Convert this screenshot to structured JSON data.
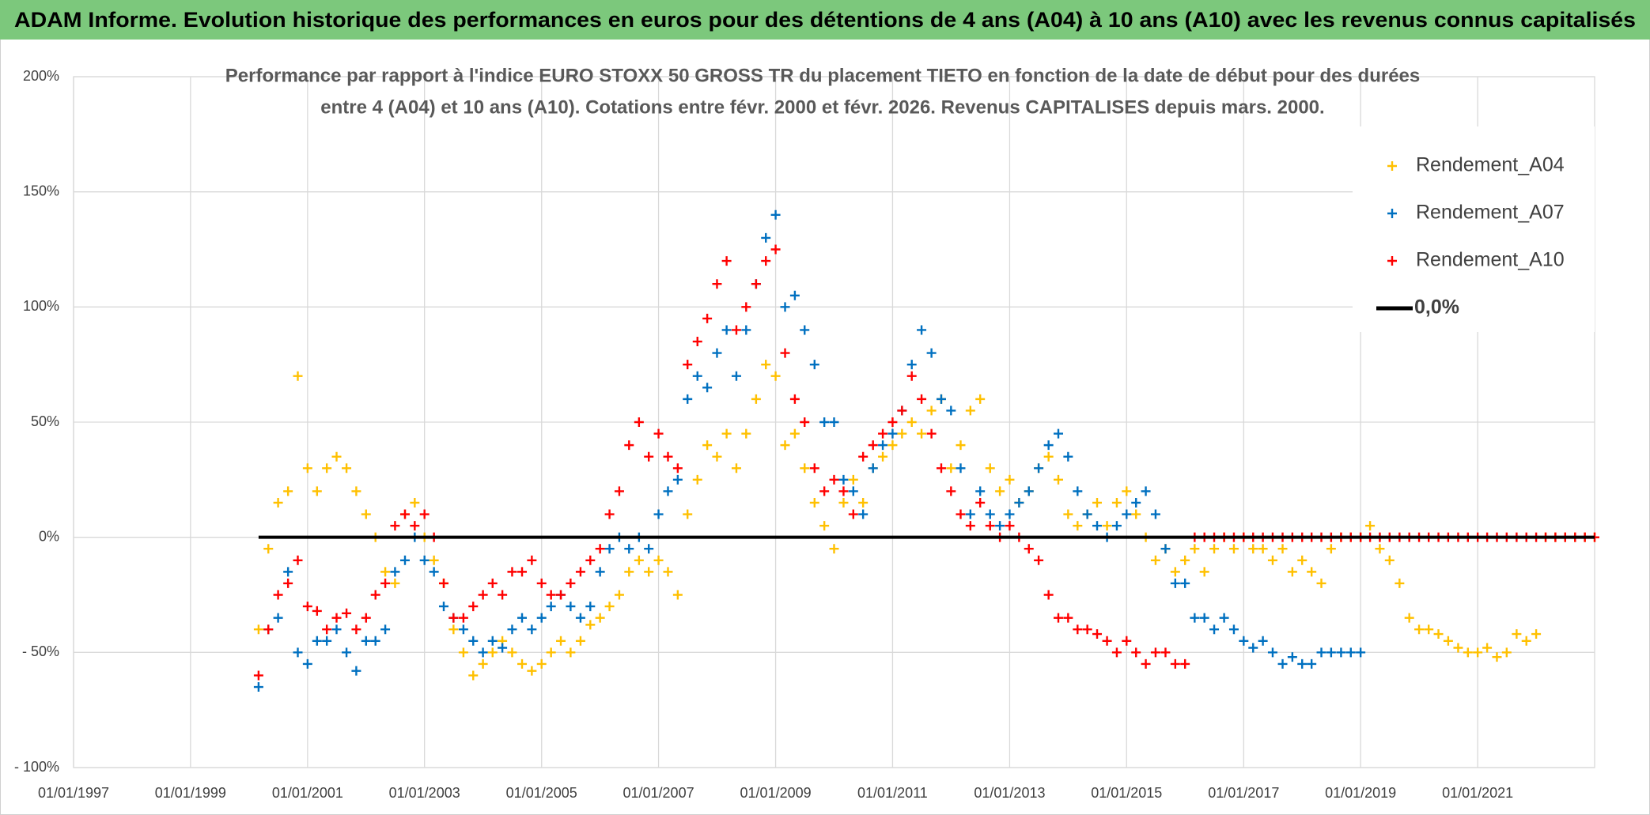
{
  "chart_data": {
    "type": "scatter",
    "title": "ADAM Informe. Evolution historique des performances en euros pour des détentions de 4 ans (A04) à 10 ans (A10) avec les revenus connus capitalisés",
    "subtitle": [
      "Performance par rapport à l'indice EURO STOXX 50 GROSS TR  du placement TIETO en fonction de la date de début pour des durées",
      "entre 4 (A04) et 10 ans (A10). Cotations entre févr. 2000 et févr. 2026. Revenus CAPITALISES depuis mars. 2000."
    ],
    "x": [
      "2000-03-01",
      "2000-05-01",
      "2000-07-01",
      "2000-09-01",
      "2000-11-01",
      "2001-01-01",
      "2001-03-01",
      "2001-05-01",
      "2001-07-01",
      "2001-09-01",
      "2001-11-01",
      "2002-01-01",
      "2002-03-01",
      "2002-05-01",
      "2002-07-01",
      "2002-09-01",
      "2002-11-01",
      "2003-01-01",
      "2003-03-01",
      "2003-05-01",
      "2003-07-01",
      "2003-09-01",
      "2003-11-01",
      "2004-01-01",
      "2004-03-01",
      "2004-05-01",
      "2004-07-01",
      "2004-09-01",
      "2004-11-01",
      "2005-01-01",
      "2005-03-01",
      "2005-05-01",
      "2005-07-01",
      "2005-09-01",
      "2005-11-01",
      "2006-01-01",
      "2006-03-01",
      "2006-05-01",
      "2006-07-01",
      "2006-09-01",
      "2006-11-01",
      "2007-01-01",
      "2007-03-01",
      "2007-05-01",
      "2007-07-01",
      "2007-09-01",
      "2007-11-01",
      "2008-01-01",
      "2008-03-01",
      "2008-05-01",
      "2008-07-01",
      "2008-09-01",
      "2008-11-01",
      "2009-01-01",
      "2009-03-01",
      "2009-05-01",
      "2009-07-01",
      "2009-09-01",
      "2009-11-01",
      "2010-01-01",
      "2010-03-01",
      "2010-05-01",
      "2010-07-01",
      "2010-09-01",
      "2010-11-01",
      "2011-01-01",
      "2011-03-01",
      "2011-05-01",
      "2011-07-01",
      "2011-09-01",
      "2011-11-01",
      "2012-01-01",
      "2012-03-01",
      "2012-05-01",
      "2012-07-01",
      "2012-09-01",
      "2012-11-01",
      "2013-01-01",
      "2013-03-01",
      "2013-05-01",
      "2013-07-01",
      "2013-09-01",
      "2013-11-01",
      "2014-01-01",
      "2014-03-01",
      "2014-05-01",
      "2014-07-01",
      "2014-09-01",
      "2014-11-01",
      "2015-01-01",
      "2015-03-01",
      "2015-05-01",
      "2015-07-01",
      "2015-09-01",
      "2015-11-01",
      "2016-01-01",
      "2016-03-01",
      "2016-05-01",
      "2016-07-01",
      "2016-09-01",
      "2016-11-01",
      "2017-01-01",
      "2017-03-01",
      "2017-05-01",
      "2017-07-01",
      "2017-09-01",
      "2017-11-01",
      "2018-01-01",
      "2018-03-01",
      "2018-05-01",
      "2018-07-01",
      "2018-09-01",
      "2018-11-01",
      "2019-01-01",
      "2019-03-01",
      "2019-05-01",
      "2019-07-01",
      "2019-09-01",
      "2019-11-01",
      "2020-01-01",
      "2020-03-01",
      "2020-05-01",
      "2020-07-01",
      "2020-09-01",
      "2020-11-01",
      "2021-01-01",
      "2021-03-01",
      "2021-05-01",
      "2021-07-01",
      "2021-09-01",
      "2021-11-01",
      "2022-01-01",
      "2022-03-01",
      "2022-05-01",
      "2022-07-01",
      "2022-09-01",
      "2022-11-01",
      "2023-01-01"
    ],
    "series": [
      {
        "name": "Rendement_A04",
        "color": "#ffc000",
        "values": [
          -40,
          -5,
          15,
          20,
          70,
          30,
          20,
          30,
          35,
          30,
          20,
          10,
          0,
          -15,
          -20,
          10,
          15,
          0,
          -10,
          -20,
          -40,
          -50,
          -60,
          -55,
          -50,
          -45,
          -50,
          -55,
          -58,
          -55,
          -50,
          -45,
          -50,
          -45,
          -38,
          -35,
          -30,
          -25,
          -15,
          -10,
          -15,
          -10,
          -15,
          -25,
          10,
          25,
          40,
          35,
          45,
          30,
          45,
          60,
          75,
          70,
          40,
          45,
          30,
          15,
          5,
          -5,
          15,
          25,
          15,
          30,
          35,
          40,
          45,
          50,
          45,
          55,
          60,
          30,
          40,
          55,
          60,
          30,
          20,
          25,
          15,
          20,
          30,
          35,
          25,
          10,
          5,
          10,
          15,
          5,
          15,
          20,
          10,
          0,
          -10,
          -5,
          -15,
          -10,
          -5,
          -15,
          -5,
          0,
          -5,
          0,
          -5,
          -5,
          -10,
          -5,
          -15,
          -10,
          -15,
          -20,
          -5,
          0,
          0,
          0,
          5,
          -5,
          -10,
          -20,
          -35,
          -40,
          -40,
          -42,
          -45,
          -48,
          -50,
          -50,
          -48,
          -52,
          -50,
          -42,
          -45,
          -42,
          0,
          0,
          0,
          0,
          0,
          0
        ]
      },
      {
        "name": "Rendement_A07",
        "color": "#0070c0",
        "values": [
          -65,
          -40,
          -35,
          -15,
          -50,
          -55,
          -45,
          -45,
          -40,
          -50,
          -58,
          -45,
          -45,
          -40,
          -15,
          -10,
          0,
          -10,
          -15,
          -30,
          -35,
          -40,
          -45,
          -50,
          -45,
          -48,
          -40,
          -35,
          -40,
          -35,
          -30,
          -25,
          -30,
          -35,
          -30,
          -15,
          -5,
          0,
          -5,
          0,
          -5,
          10,
          20,
          25,
          60,
          70,
          65,
          80,
          90,
          70,
          90,
          110,
          130,
          140,
          100,
          105,
          90,
          75,
          50,
          50,
          25,
          20,
          10,
          30,
          40,
          45,
          55,
          75,
          90,
          80,
          60,
          55,
          30,
          10,
          20,
          10,
          5,
          10,
          15,
          20,
          30,
          40,
          45,
          35,
          20,
          10,
          5,
          0,
          5,
          10,
          15,
          20,
          10,
          -5,
          -20,
          -20,
          -35,
          -35,
          -40,
          -35,
          -40,
          -45,
          -48,
          -45,
          -50,
          -55,
          -52,
          -55,
          -55,
          -50,
          -50,
          -50,
          -50,
          -50,
          null,
          null,
          null,
          null,
          null,
          null,
          null,
          null,
          null,
          null,
          null,
          null,
          null,
          null,
          null,
          null,
          null,
          null,
          null,
          null,
          null,
          null,
          null,
          null
        ]
      },
      {
        "name": "Rendement_A10",
        "color": "#ff0000",
        "values": [
          -60,
          -40,
          -25,
          -20,
          -10,
          -30,
          -32,
          -40,
          -35,
          -33,
          -40,
          -35,
          -25,
          -20,
          5,
          10,
          5,
          10,
          0,
          -20,
          -35,
          -35,
          -30,
          -25,
          -20,
          -25,
          -15,
          -15,
          -10,
          -20,
          -25,
          -25,
          -20,
          -15,
          -10,
          -5,
          10,
          20,
          40,
          50,
          35,
          45,
          35,
          30,
          75,
          85,
          95,
          110,
          120,
          90,
          100,
          110,
          120,
          125,
          80,
          60,
          50,
          30,
          20,
          25,
          20,
          10,
          35,
          40,
          45,
          50,
          55,
          70,
          60,
          45,
          30,
          20,
          10,
          5,
          15,
          5,
          0,
          5,
          0,
          -5,
          -10,
          -25,
          -35,
          -35,
          -40,
          -40,
          -42,
          -45,
          -50,
          -45,
          -50,
          -55,
          -50,
          -50,
          -55,
          -55,
          0,
          0,
          0,
          0,
          0,
          0,
          0,
          0,
          0,
          0,
          0,
          0,
          0,
          0,
          0,
          0,
          0,
          0,
          0,
          0,
          0,
          0,
          0,
          0,
          0,
          0,
          0,
          0,
          0,
          0,
          0,
          0,
          0,
          0,
          0,
          0,
          0,
          0,
          0,
          0,
          0,
          0
        ]
      },
      {
        "name": "0,0%",
        "type": "line",
        "color": "#000000",
        "x": [
          "2000-03-01",
          "2023-01-01"
        ],
        "values": [
          0,
          0
        ]
      }
    ],
    "xlim": [
      "1997-01-01",
      "2023-01-01"
    ],
    "xticks": [
      {
        "value": "1997-01-01",
        "label": "01/01/1997"
      },
      {
        "value": "1999-01-01",
        "label": "01/01/1999"
      },
      {
        "value": "2001-01-01",
        "label": "01/01/2001"
      },
      {
        "value": "2003-01-01",
        "label": "01/01/2003"
      },
      {
        "value": "2005-01-01",
        "label": "01/01/2005"
      },
      {
        "value": "2007-01-01",
        "label": "01/01/2007"
      },
      {
        "value": "2009-01-01",
        "label": "01/01/2009"
      },
      {
        "value": "2011-01-01",
        "label": "01/01/2011"
      },
      {
        "value": "2013-01-01",
        "label": "01/01/2013"
      },
      {
        "value": "2015-01-01",
        "label": "01/01/2015"
      },
      {
        "value": "2017-01-01",
        "label": "01/01/2017"
      },
      {
        "value": "2019-01-01",
        "label": "01/01/2019"
      },
      {
        "value": "2021-01-01",
        "label": "01/01/2021"
      }
    ],
    "ylim": [
      -100,
      200
    ],
    "yticks": [
      {
        "value": -100,
        "label": "- 100%"
      },
      {
        "value": -50,
        "label": "- 50%"
      },
      {
        "value": 0,
        "label": "0%"
      },
      {
        "value": 50,
        "label": "50%"
      },
      {
        "value": 100,
        "label": "100%"
      },
      {
        "value": 150,
        "label": "150%"
      },
      {
        "value": 200,
        "label": "200%"
      }
    ],
    "grid": true,
    "legend": "upper right"
  }
}
